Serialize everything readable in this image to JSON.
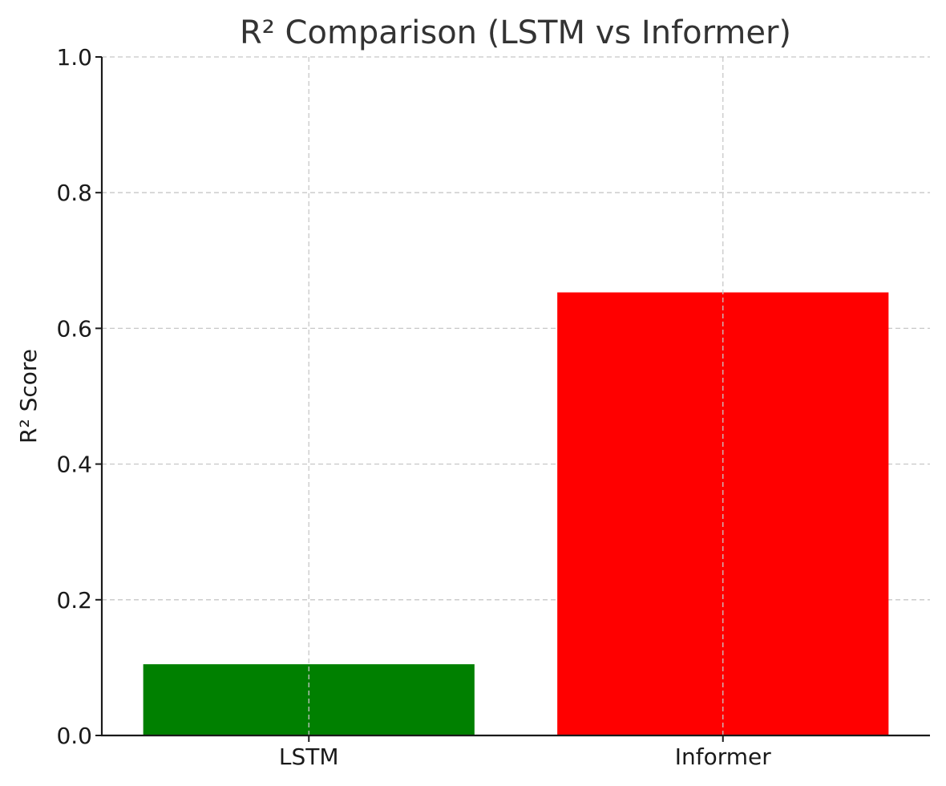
{
  "chart_data": {
    "type": "bar",
    "title": "R² Comparison (LSTM vs Informer)",
    "xlabel": "",
    "ylabel": "R² Score",
    "categories": [
      "LSTM",
      "Informer"
    ],
    "values": [
      0.105,
      0.653
    ],
    "colors": [
      "#008000",
      "#ff0000"
    ],
    "ylim": [
      0,
      1.0
    ],
    "yticks": [
      "0.0",
      "0.2",
      "0.4",
      "0.6",
      "0.8",
      "1.0"
    ],
    "grid": true
  }
}
